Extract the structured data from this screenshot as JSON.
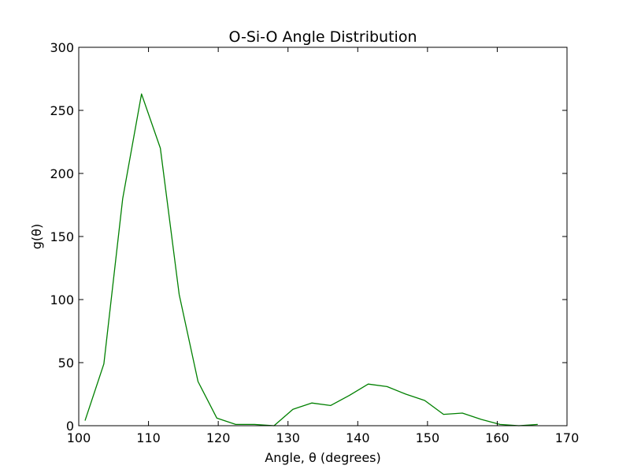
{
  "chart_data": {
    "type": "line",
    "title": "O-Si-O Angle Distribution",
    "xlabel": "Angle, θ (degrees)",
    "ylabel": "g(θ)",
    "xlim": [
      100,
      170
    ],
    "ylim": [
      0,
      300
    ],
    "xticks": [
      100,
      110,
      120,
      130,
      140,
      150,
      160,
      170
    ],
    "yticks": [
      0,
      50,
      100,
      150,
      200,
      250,
      300
    ],
    "grid": false,
    "series": [
      {
        "color": "#008000",
        "x": [
          100.9,
          103.6,
          106.3,
          109.0,
          111.7,
          114.4,
          117.1,
          119.8,
          122.5,
          125.2,
          128.0,
          130.7,
          133.4,
          136.1,
          138.8,
          141.5,
          144.2,
          146.9,
          149.6,
          152.3,
          155.0,
          157.7,
          160.4,
          163.1,
          165.8
        ],
        "y": [
          4,
          49,
          180,
          263,
          220,
          104,
          35,
          6,
          1,
          1,
          0,
          13,
          18,
          16,
          24,
          33,
          31,
          25,
          20,
          9,
          10,
          5,
          1,
          0,
          1
        ]
      }
    ]
  }
}
